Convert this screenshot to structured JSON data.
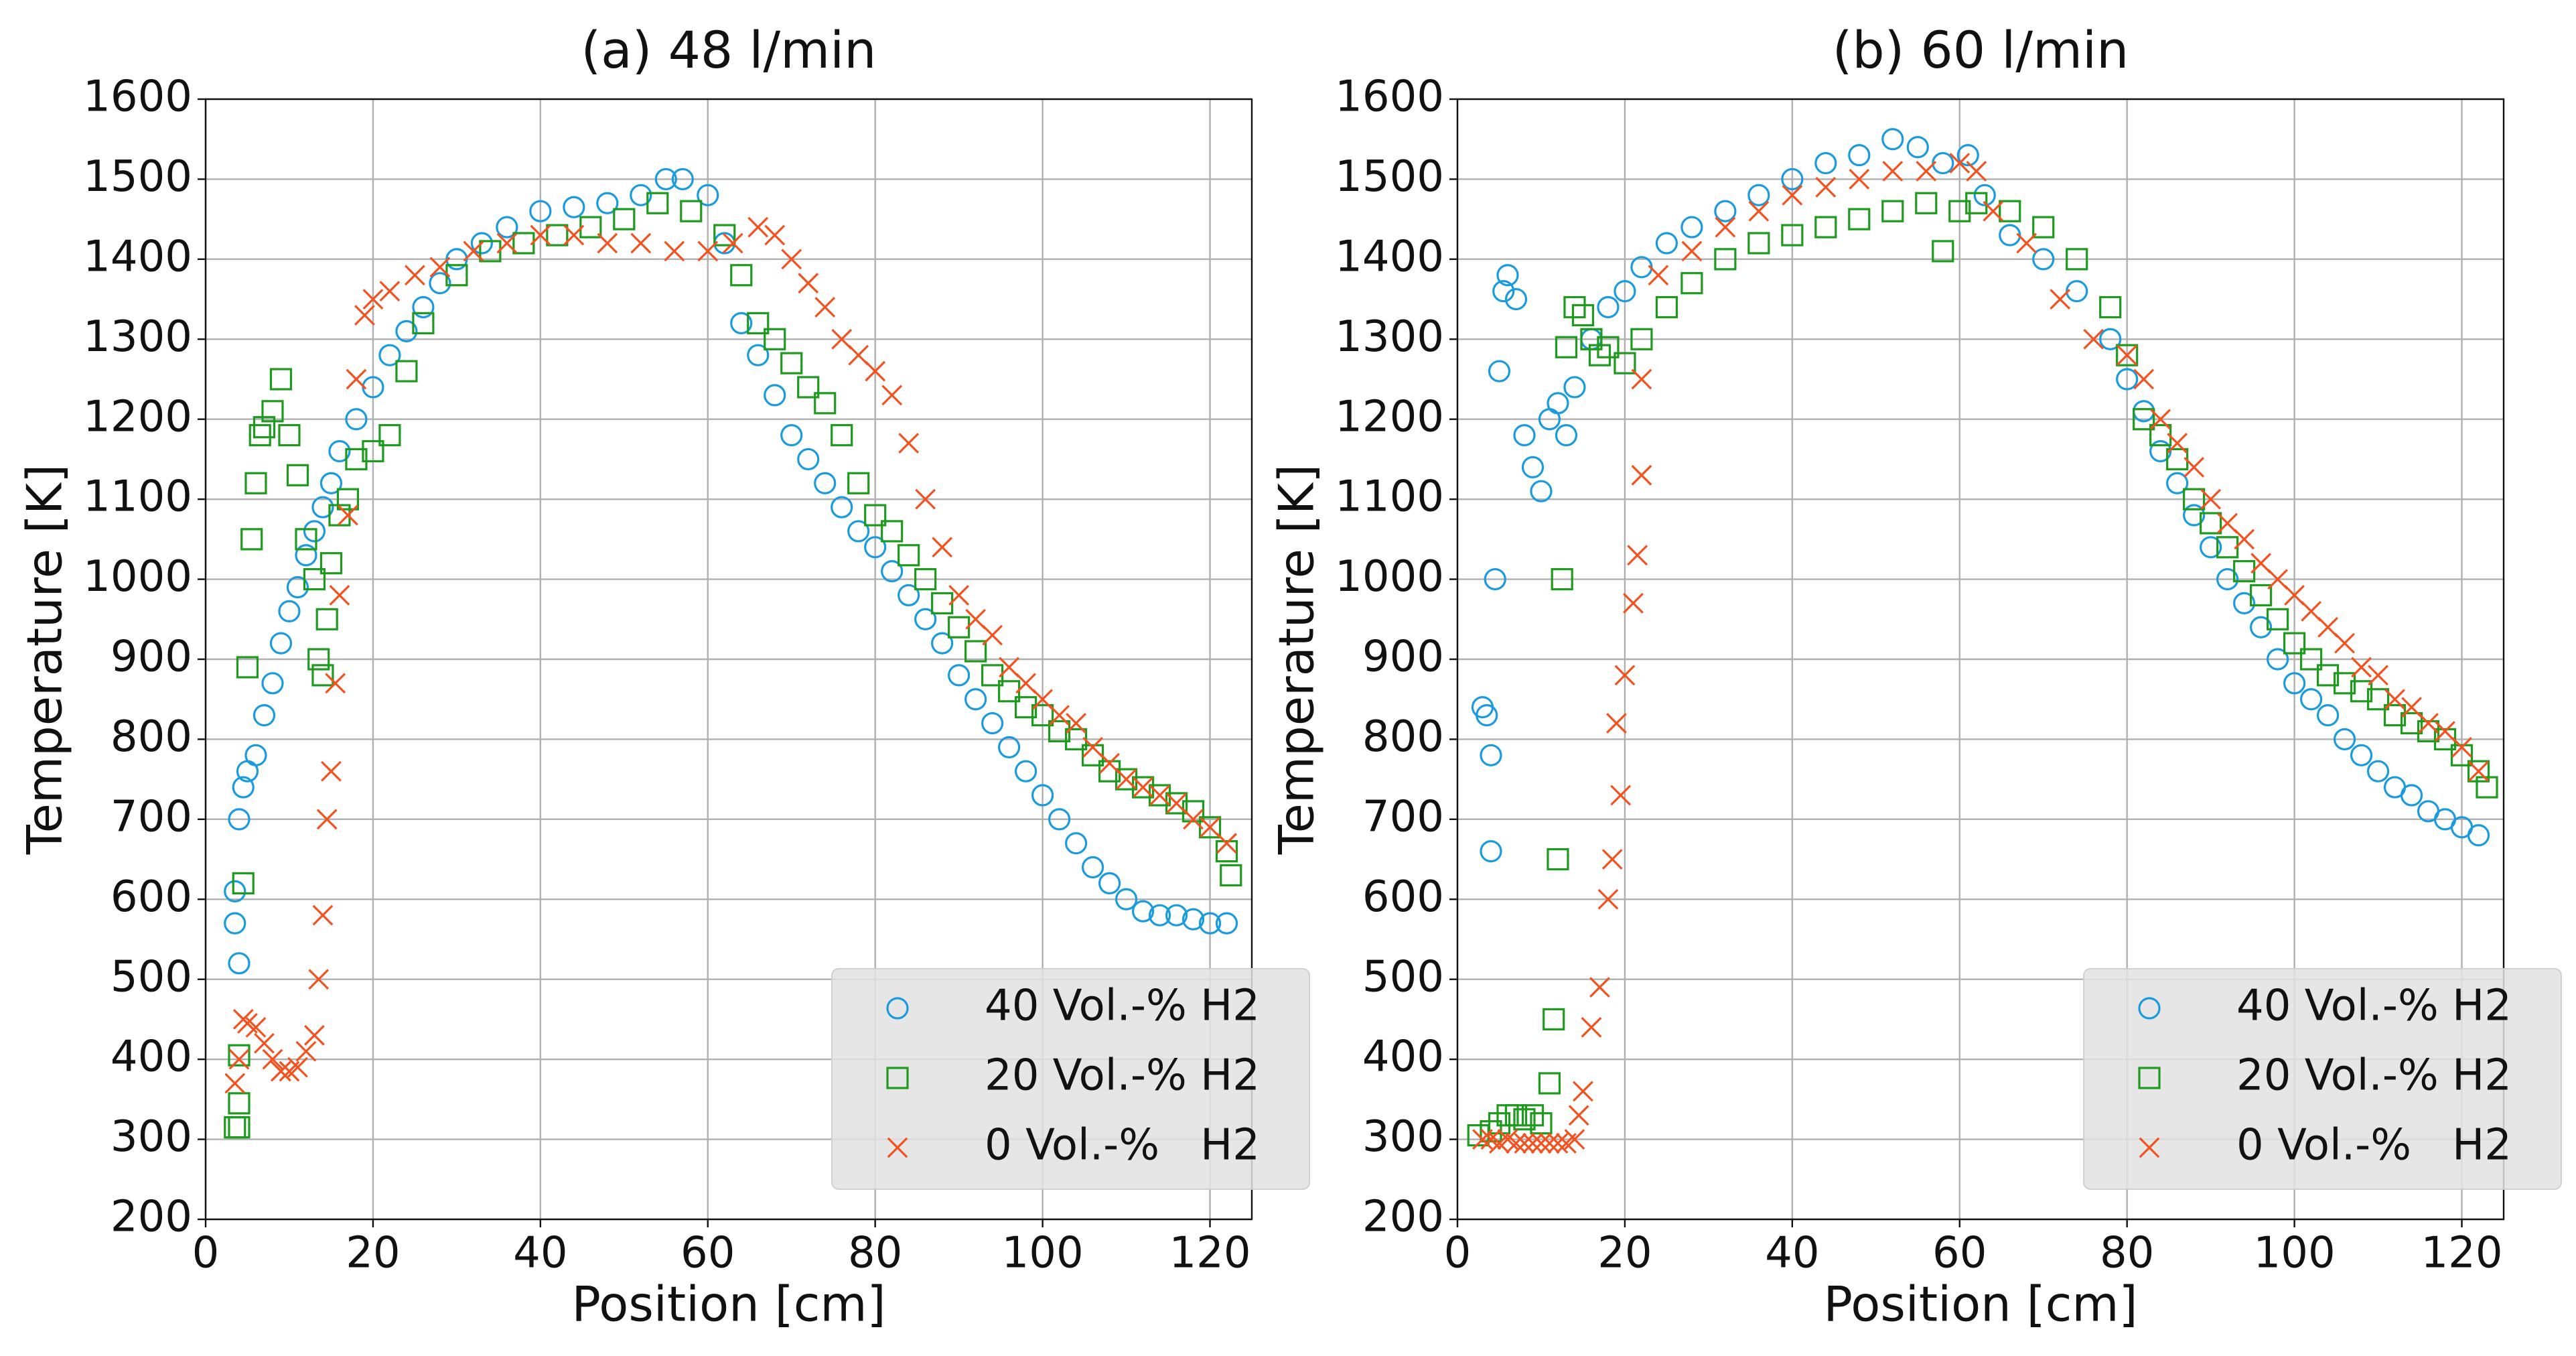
{
  "chart_data": [
    {
      "type": "scatter",
      "title": "(a) 48 l/min",
      "xlabel": "Position [cm]",
      "ylabel": "Temperature [K]",
      "xlim": [
        0,
        125
      ],
      "ylim": [
        200,
        1600
      ],
      "xticks": [
        0,
        20,
        40,
        60,
        80,
        100,
        120
      ],
      "yticks": [
        200,
        300,
        400,
        500,
        600,
        700,
        800,
        900,
        1000,
        1100,
        1200,
        1300,
        1400,
        1500,
        1600
      ],
      "grid": true,
      "legend": "lower right",
      "series": [
        {
          "name": "40 Vol.-% H2",
          "color": "#1a9be0",
          "marker": "o",
          "x": [
            3.5,
            3.5,
            4,
            4,
            4.5,
            5,
            6,
            7,
            8,
            9,
            10,
            11,
            12,
            13,
            14,
            15,
            16,
            18,
            20,
            22,
            24,
            26,
            28,
            30,
            33,
            36,
            40,
            44,
            48,
            52,
            55,
            57,
            60,
            62,
            64,
            66,
            68,
            70,
            72,
            74,
            76,
            78,
            80,
            82,
            84,
            86,
            88,
            90,
            92,
            94,
            96,
            98,
            100,
            102,
            104,
            106,
            108,
            110,
            112,
            114,
            116,
            118,
            120,
            122
          ],
          "values": [
            570,
            610,
            520,
            700,
            740,
            760,
            780,
            830,
            870,
            920,
            960,
            990,
            1030,
            1060,
            1090,
            1120,
            1160,
            1200,
            1240,
            1280,
            1310,
            1340,
            1370,
            1400,
            1420,
            1440,
            1460,
            1465,
            1470,
            1480,
            1500,
            1500,
            1480,
            1420,
            1320,
            1280,
            1230,
            1180,
            1150,
            1120,
            1090,
            1060,
            1040,
            1010,
            980,
            950,
            920,
            880,
            850,
            820,
            790,
            760,
            730,
            700,
            670,
            640,
            620,
            600,
            585,
            580,
            580,
            575,
            570,
            570
          ]
        },
        {
          "name": "20 Vol.-% H2",
          "color": "#1e9a1e",
          "marker": "s",
          "x": [
            3.5,
            4,
            4,
            4,
            4.5,
            5,
            5.5,
            6,
            6.5,
            7,
            8,
            9,
            10,
            11,
            12,
            13,
            13.5,
            14,
            14.5,
            15,
            16,
            17,
            18,
            20,
            22,
            24,
            26,
            30,
            34,
            38,
            42,
            46,
            50,
            54,
            58,
            62,
            64,
            66,
            68,
            70,
            72,
            74,
            76,
            78,
            80,
            82,
            84,
            86,
            88,
            90,
            92,
            94,
            96,
            98,
            100,
            102,
            104,
            106,
            108,
            110,
            112,
            114,
            116,
            118,
            120,
            122,
            122.5
          ],
          "values": [
            315,
            315,
            345,
            405,
            620,
            890,
            1050,
            1120,
            1180,
            1190,
            1210,
            1250,
            1180,
            1130,
            1050,
            1000,
            900,
            880,
            950,
            1020,
            1080,
            1100,
            1150,
            1160,
            1180,
            1260,
            1320,
            1380,
            1410,
            1420,
            1430,
            1440,
            1450,
            1470,
            1460,
            1430,
            1380,
            1320,
            1300,
            1270,
            1240,
            1220,
            1180,
            1120,
            1080,
            1060,
            1030,
            1000,
            970,
            940,
            910,
            880,
            860,
            840,
            830,
            810,
            800,
            780,
            760,
            750,
            740,
            730,
            720,
            710,
            690,
            660,
            630
          ]
        },
        {
          "name": "0 Vol.-%   H2",
          "color": "#f4511e",
          "marker": "x",
          "x": [
            3.5,
            4,
            4.5,
            5,
            6,
            7,
            8,
            9,
            10,
            11,
            12,
            13,
            13.5,
            14,
            14.5,
            15,
            15.5,
            16,
            17,
            18,
            19,
            20,
            22,
            25,
            28,
            32,
            36,
            40,
            44,
            48,
            52,
            56,
            60,
            63,
            66,
            68,
            70,
            72,
            74,
            76,
            78,
            80,
            82,
            84,
            86,
            88,
            90,
            92,
            94,
            96,
            98,
            100,
            102,
            104,
            106,
            108,
            110,
            112,
            114,
            116,
            118,
            120,
            122
          ],
          "values": [
            370,
            400,
            450,
            445,
            440,
            420,
            400,
            385,
            385,
            390,
            410,
            430,
            500,
            580,
            700,
            760,
            870,
            980,
            1080,
            1250,
            1330,
            1350,
            1360,
            1380,
            1390,
            1410,
            1420,
            1430,
            1430,
            1420,
            1420,
            1410,
            1410,
            1420,
            1440,
            1430,
            1400,
            1370,
            1340,
            1300,
            1280,
            1260,
            1230,
            1170,
            1100,
            1040,
            980,
            950,
            930,
            890,
            870,
            850,
            830,
            820,
            790,
            770,
            750,
            740,
            730,
            720,
            700,
            690,
            670
          ]
        }
      ]
    },
    {
      "type": "scatter",
      "title": "(b) 60 l/min",
      "xlabel": "Position [cm]",
      "ylabel": "Temperature [K]",
      "xlim": [
        0,
        125
      ],
      "ylim": [
        200,
        1600
      ],
      "xticks": [
        0,
        20,
        40,
        60,
        80,
        100,
        120
      ],
      "yticks": [
        200,
        300,
        400,
        500,
        600,
        700,
        800,
        900,
        1000,
        1100,
        1200,
        1300,
        1400,
        1500,
        1600
      ],
      "grid": true,
      "legend": "lower right",
      "series": [
        {
          "name": "40 Vol.-% H2",
          "color": "#1a9be0",
          "marker": "o",
          "x": [
            3,
            3.5,
            4,
            4,
            4.5,
            5,
            5.5,
            6,
            7,
            8,
            9,
            10,
            11,
            12,
            13,
            14,
            16,
            18,
            20,
            22,
            25,
            28,
            32,
            36,
            40,
            44,
            48,
            52,
            55,
            58,
            61,
            63,
            66,
            70,
            74,
            78,
            80,
            82,
            84,
            86,
            88,
            90,
            92,
            94,
            96,
            98,
            100,
            102,
            104,
            106,
            108,
            110,
            112,
            114,
            116,
            118,
            120,
            122
          ],
          "values": [
            840,
            830,
            780,
            660,
            1000,
            1260,
            1360,
            1380,
            1350,
            1180,
            1140,
            1110,
            1200,
            1220,
            1180,
            1240,
            1300,
            1340,
            1360,
            1390,
            1420,
            1440,
            1460,
            1480,
            1500,
            1520,
            1530,
            1550,
            1540,
            1520,
            1530,
            1480,
            1430,
            1400,
            1360,
            1300,
            1250,
            1210,
            1160,
            1120,
            1080,
            1040,
            1000,
            970,
            940,
            900,
            870,
            850,
            830,
            800,
            780,
            760,
            740,
            730,
            710,
            700,
            690,
            680
          ]
        },
        {
          "name": "20 Vol.-% H2",
          "color": "#1e9a1e",
          "marker": "s",
          "x": [
            2.5,
            4,
            5,
            6,
            7,
            8,
            9,
            10,
            11,
            11.5,
            12,
            12.5,
            13,
            14,
            15,
            16,
            17,
            18,
            20,
            22,
            25,
            28,
            32,
            36,
            40,
            44,
            48,
            52,
            56,
            58,
            60,
            62,
            66,
            70,
            74,
            78,
            80,
            82,
            84,
            86,
            88,
            90,
            92,
            94,
            96,
            98,
            100,
            102,
            104,
            106,
            108,
            110,
            112,
            114,
            116,
            118,
            120,
            122,
            123
          ],
          "values": [
            305,
            310,
            320,
            330,
            330,
            325,
            330,
            320,
            370,
            450,
            650,
            1000,
            1290,
            1340,
            1330,
            1300,
            1280,
            1290,
            1270,
            1300,
            1340,
            1370,
            1400,
            1420,
            1430,
            1440,
            1450,
            1460,
            1470,
            1410,
            1460,
            1470,
            1460,
            1440,
            1400,
            1340,
            1280,
            1200,
            1180,
            1150,
            1100,
            1070,
            1040,
            1010,
            980,
            950,
            920,
            900,
            880,
            870,
            860,
            850,
            830,
            820,
            810,
            800,
            780,
            760,
            740
          ]
        },
        {
          "name": "0 Vol.-%   H2",
          "color": "#f4511e",
          "marker": "x",
          "x": [
            3,
            4,
            5,
            6,
            7,
            8,
            9,
            10,
            11,
            12,
            13,
            14,
            14.5,
            15,
            16,
            17,
            18,
            18.5,
            19,
            19.5,
            20,
            21,
            21.5,
            22,
            22,
            24,
            28,
            32,
            36,
            40,
            44,
            48,
            52,
            56,
            60,
            62,
            64,
            68,
            72,
            76,
            80,
            82,
            84,
            86,
            88,
            90,
            92,
            94,
            96,
            98,
            100,
            102,
            104,
            106,
            108,
            110,
            112,
            114,
            116,
            118,
            120,
            122
          ],
          "values": [
            300,
            300,
            295,
            300,
            295,
            295,
            295,
            295,
            295,
            295,
            295,
            300,
            330,
            360,
            440,
            490,
            600,
            650,
            820,
            730,
            880,
            970,
            1030,
            1130,
            1250,
            1380,
            1410,
            1440,
            1460,
            1480,
            1490,
            1500,
            1510,
            1510,
            1520,
            1510,
            1460,
            1420,
            1350,
            1300,
            1280,
            1250,
            1200,
            1170,
            1140,
            1100,
            1070,
            1050,
            1020,
            1000,
            980,
            960,
            940,
            920,
            890,
            880,
            850,
            840,
            820,
            810,
            790,
            760
          ]
        }
      ]
    }
  ]
}
